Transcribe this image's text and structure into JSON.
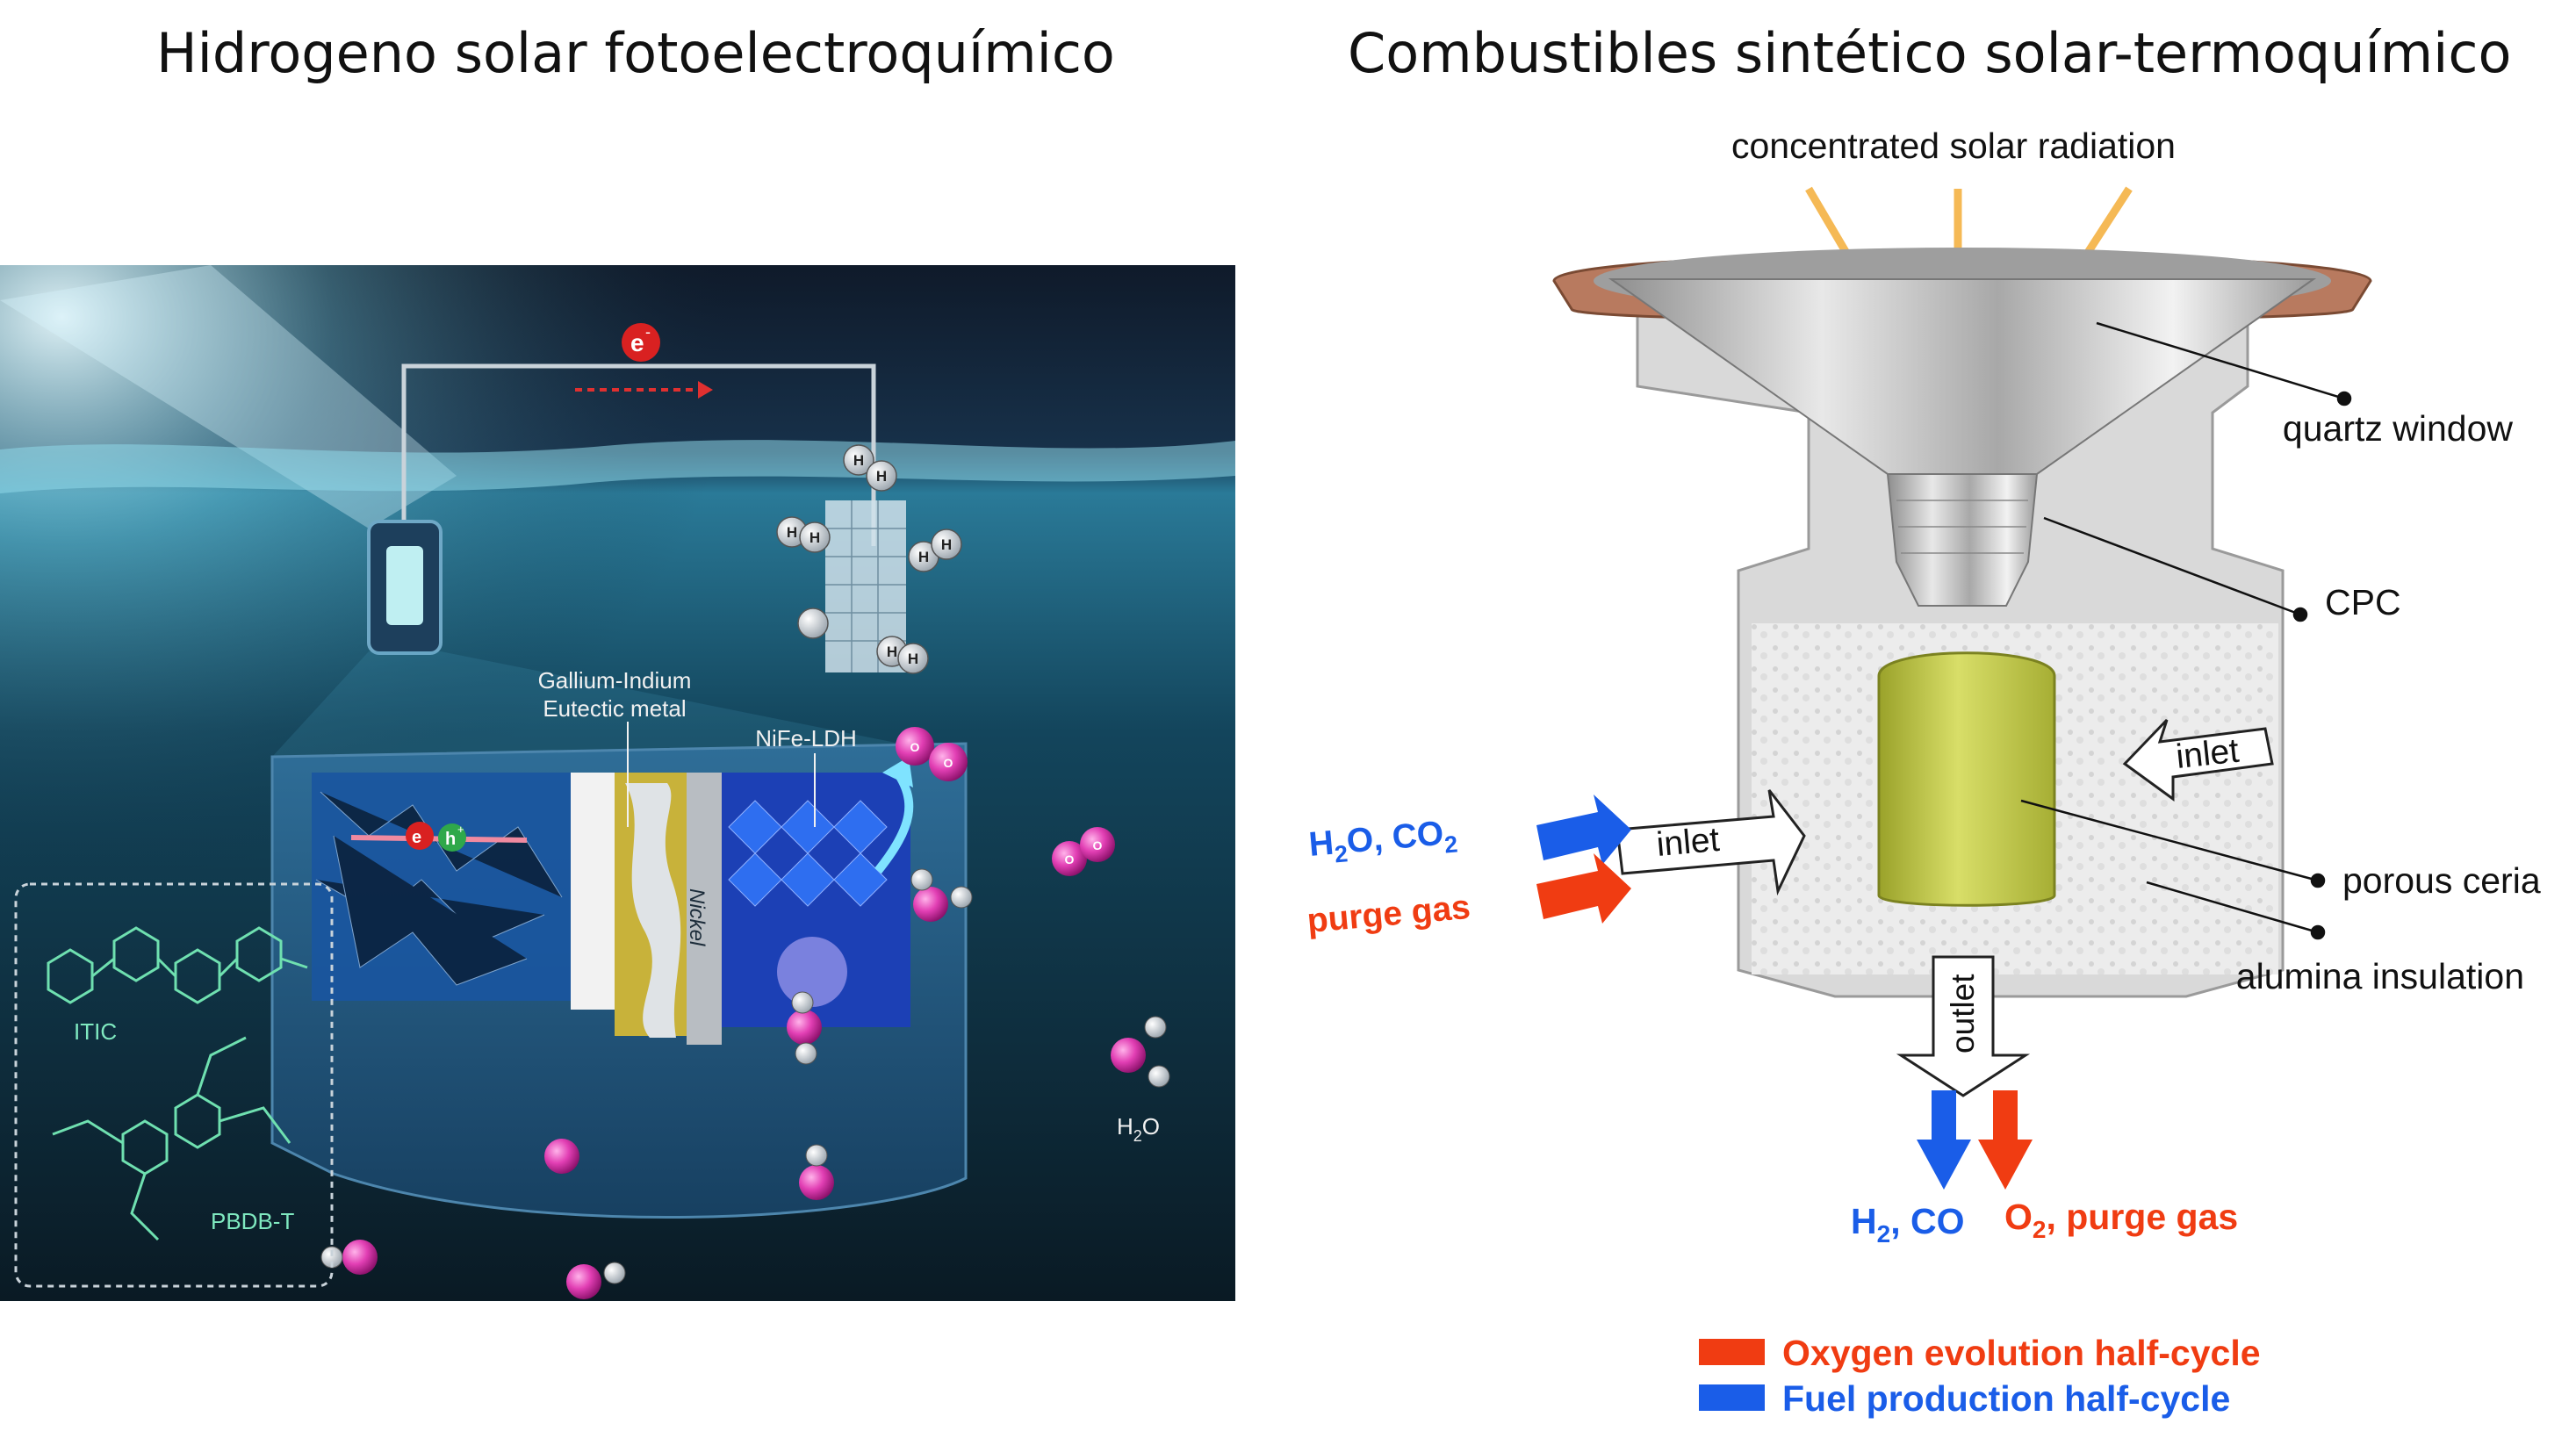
{
  "titles": {
    "left": "Hidrogeno solar fotoelectroquímico",
    "right": "Combustibles sintético solar-termoquímico"
  },
  "left_figure": {
    "electron": "e",
    "electron_sup": "-",
    "hole": "h",
    "hole_sup": "+",
    "gallium_line1": "Gallium-Indium",
    "gallium_line2": "Eutectic metal",
    "nife": "NiFe-LDH",
    "nickel": "Nickel",
    "itic": "ITIC",
    "pbdb": "PBDB-T",
    "h2o_h": "H",
    "h2o_sub": "2",
    "h2o_o": "O",
    "atom_h": "H",
    "atom_o": "O"
  },
  "right_figure": {
    "solar": "concentrated solar radiation",
    "quartz": "quartz window",
    "cpc": "CPC",
    "inlet_left": "inlet",
    "inlet_right": "inlet",
    "porous": "porous ceria",
    "alumina": "alumina insulation",
    "outlet": "outlet",
    "feed_h2o": "H",
    "feed_h2o_sub": "2",
    "feed_o": "O, CO",
    "feed_co2_sub": "2",
    "purge": "purge gas",
    "prod_h2": "H",
    "prod_h2_sub": "2",
    "prod_co": ", CO",
    "prod_o2": "O",
    "prod_o2_sub": "2",
    "prod_purge": ", purge gas",
    "legend_oxygen": "Oxygen evolution half-cycle",
    "legend_fuel": "Fuel production half-cycle"
  },
  "colors": {
    "blue_arrow": "#1a5de8",
    "red_arrow": "#f03c12",
    "blue_text": "#1a5de8",
    "red_text": "#f03c12",
    "ceria": "#c9d04a",
    "flange": "#b87a5f",
    "molecule_o": "#e23fb4"
  }
}
